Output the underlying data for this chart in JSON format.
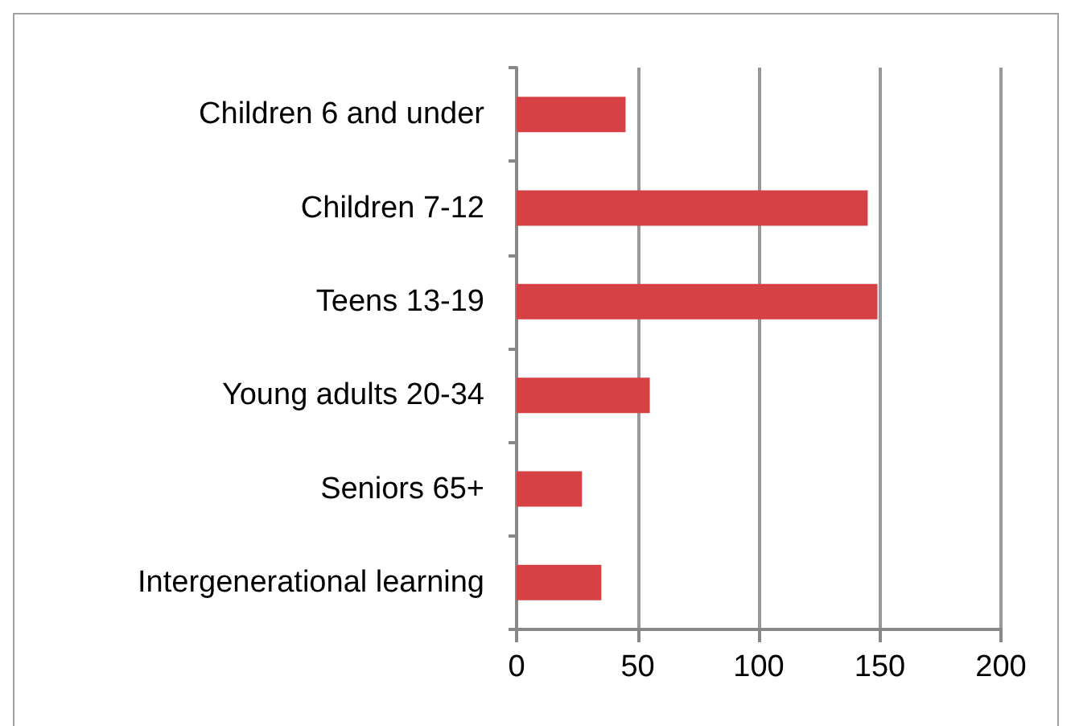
{
  "chart_data": {
    "type": "bar",
    "orientation": "horizontal",
    "categories": [
      "Children 6 and under",
      "Children 7-12",
      "Teens 13-19",
      "Young adults 20-34",
      "Seniors 65+",
      "Intergenerational learning"
    ],
    "values": [
      45,
      145,
      149,
      55,
      27,
      35
    ],
    "color": "#d54145",
    "xlim": [
      0,
      200
    ],
    "xticks": [
      0,
      50,
      100,
      150,
      200
    ],
    "grid": "x"
  }
}
